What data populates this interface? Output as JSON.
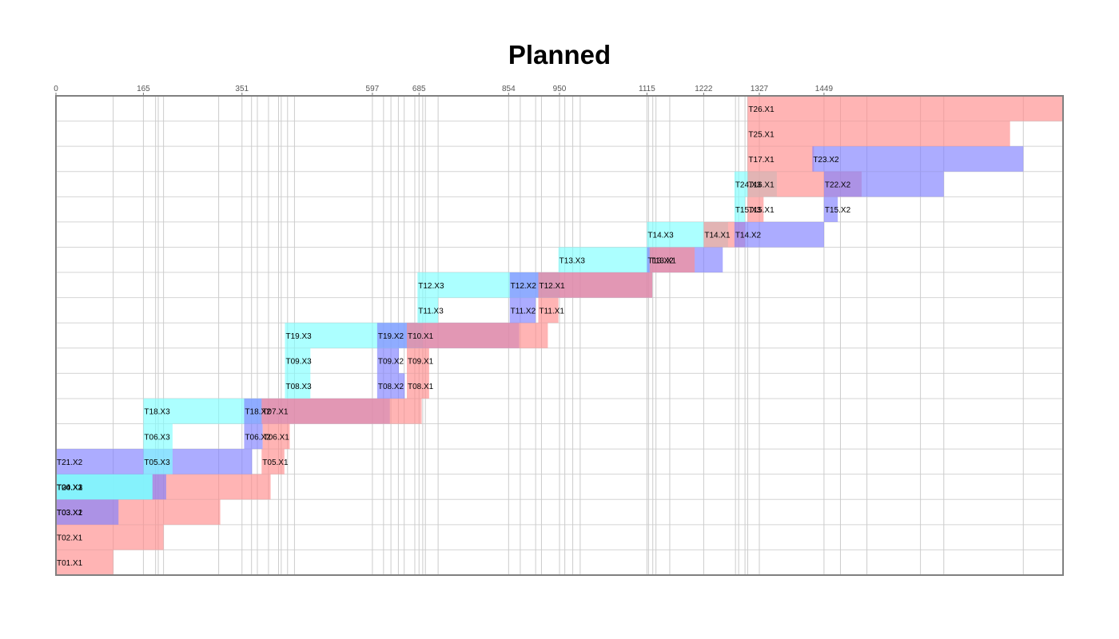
{
  "chart_data": {
    "type": "gantt",
    "title": "Planned",
    "xlim": [
      0,
      1900
    ],
    "x_ticks": [
      0,
      165,
      351,
      597,
      685,
      854,
      950,
      1115,
      1222,
      1327,
      1449
    ],
    "minor_grid_x": [
      108,
      165,
      188,
      193,
      203,
      307,
      351,
      369,
      380,
      401,
      420,
      425,
      437,
      450,
      597,
      618,
      632,
      646,
      657,
      677,
      685,
      692,
      697,
      721,
      854,
      876,
      905,
      916,
      950,
      960,
      975,
      989,
      1115,
      1118,
      1126,
      1132,
      1158,
      1222,
      1282,
      1288,
      1300,
      1305,
      1327,
      1449,
      1480,
      1530,
      1631,
      1675,
      1825
    ],
    "colors": {
      "X1": "#ff8c8c",
      "X2": "#8080ff",
      "X3": "#80ffff",
      "opacity": 0.65
    },
    "rows": 19,
    "tasks": [
      {
        "row": 0,
        "label": "T01.X1",
        "type": "X1",
        "start": 0,
        "end": 108
      },
      {
        "row": 1,
        "label": "T02.X1",
        "type": "X1",
        "start": 0,
        "end": 203
      },
      {
        "row": 2,
        "label": "T03.X1",
        "type": "X1",
        "start": 0,
        "end": 310
      },
      {
        "row": 2,
        "label": "T03.X2",
        "type": "X2",
        "start": 0,
        "end": 118
      },
      {
        "row": 3,
        "label": "T04.X1",
        "type": "X1",
        "start": 0,
        "end": 405
      },
      {
        "row": 3,
        "label": "T04.X2",
        "type": "X2",
        "start": 0,
        "end": 208
      },
      {
        "row": 3,
        "label": "T04.X3",
        "type": "X3",
        "start": 0,
        "end": 182
      },
      {
        "row": 3,
        "label": "T20.X3",
        "type": "X3",
        "start": 0,
        "end": 182
      },
      {
        "row": 4,
        "label": "T21.X2",
        "type": "X2",
        "start": 0,
        "end": 370
      },
      {
        "row": 4,
        "label": "T05.X3",
        "type": "X3",
        "start": 165,
        "end": 220
      },
      {
        "row": 4,
        "label": "T05.X1",
        "type": "X1",
        "start": 388,
        "end": 431
      },
      {
        "row": 5,
        "label": "T06.X3",
        "type": "X3",
        "start": 165,
        "end": 220
      },
      {
        "row": 5,
        "label": "T06.X2",
        "type": "X2",
        "start": 355,
        "end": 390
      },
      {
        "row": 5,
        "label": "T06.X1",
        "type": "X1",
        "start": 390,
        "end": 441
      },
      {
        "row": 6,
        "label": "T18.X3",
        "type": "X3",
        "start": 165,
        "end": 388
      },
      {
        "row": 6,
        "label": "T18.X2",
        "type": "X2",
        "start": 355,
        "end": 630
      },
      {
        "row": 6,
        "label": "T07.X1",
        "type": "X1",
        "start": 388,
        "end": 690
      },
      {
        "row": 7,
        "label": "T08.X3",
        "type": "X3",
        "start": 432,
        "end": 480
      },
      {
        "row": 7,
        "label": "T08.X2",
        "type": "X2",
        "start": 606,
        "end": 658
      },
      {
        "row": 7,
        "label": "T08.X1",
        "type": "X1",
        "start": 662,
        "end": 704
      },
      {
        "row": 8,
        "label": "T09.X3",
        "type": "X3",
        "start": 432,
        "end": 480
      },
      {
        "row": 8,
        "label": "T09.X2",
        "type": "X2",
        "start": 606,
        "end": 647
      },
      {
        "row": 8,
        "label": "T09.X1",
        "type": "X1",
        "start": 662,
        "end": 704
      },
      {
        "row": 9,
        "label": "T19.X3",
        "type": "X3",
        "start": 432,
        "end": 692
      },
      {
        "row": 9,
        "label": "T19.X2",
        "type": "X2",
        "start": 606,
        "end": 874
      },
      {
        "row": 9,
        "label": "T10.X1",
        "type": "X1",
        "start": 662,
        "end": 928
      },
      {
        "row": 10,
        "label": "T11.X3",
        "type": "X3",
        "start": 682,
        "end": 721
      },
      {
        "row": 10,
        "label": "T11.X2",
        "type": "X2",
        "start": 856,
        "end": 905
      },
      {
        "row": 10,
        "label": "T11.X1",
        "type": "X1",
        "start": 910,
        "end": 948
      },
      {
        "row": 11,
        "label": "T12.X3",
        "type": "X3",
        "start": 682,
        "end": 950
      },
      {
        "row": 11,
        "label": "T12.X2",
        "type": "X2",
        "start": 856,
        "end": 1125
      },
      {
        "row": 11,
        "label": "T12.X1",
        "type": "X1",
        "start": 910,
        "end": 1125
      },
      {
        "row": 12,
        "label": "T13.X3",
        "type": "X3",
        "start": 948,
        "end": 1123
      },
      {
        "row": 12,
        "label": "T13.X2",
        "type": "X2",
        "start": 1115,
        "end": 1258
      },
      {
        "row": 12,
        "label": "T13.X1",
        "type": "X1",
        "start": 1120,
        "end": 1205
      },
      {
        "row": 13,
        "label": "T14.X3",
        "type": "X3",
        "start": 1115,
        "end": 1268
      },
      {
        "row": 13,
        "label": "T14.X1",
        "type": "X1",
        "start": 1222,
        "end": 1300
      },
      {
        "row": 13,
        "label": "T14.X2",
        "type": "X2",
        "start": 1280,
        "end": 1449
      },
      {
        "row": 14,
        "label": "T15.X3",
        "type": "X3",
        "start": 1280,
        "end": 1300
      },
      {
        "row": 14,
        "label": "T15.X1",
        "type": "X1",
        "start": 1305,
        "end": 1335
      },
      {
        "row": 14,
        "label": "T15.X2",
        "type": "X2",
        "start": 1449,
        "end": 1475
      },
      {
        "row": 15,
        "label": "T24.X3",
        "type": "X3",
        "start": 1280,
        "end": 1360
      },
      {
        "row": 15,
        "label": "T16.X1",
        "type": "X1",
        "start": 1305,
        "end": 1520
      },
      {
        "row": 15,
        "label": "T22.X2",
        "type": "X2",
        "start": 1449,
        "end": 1675
      },
      {
        "row": 16,
        "label": "T17.X1",
        "type": "X1",
        "start": 1305,
        "end": 1430
      },
      {
        "row": 16,
        "label": "T23.X2",
        "type": "X2",
        "start": 1427,
        "end": 1825
      },
      {
        "row": 17,
        "label": "T25.X1",
        "type": "X1",
        "start": 1305,
        "end": 1800
      },
      {
        "row": 18,
        "label": "T26.X1",
        "type": "X1",
        "start": 1305,
        "end": 1900
      }
    ]
  }
}
